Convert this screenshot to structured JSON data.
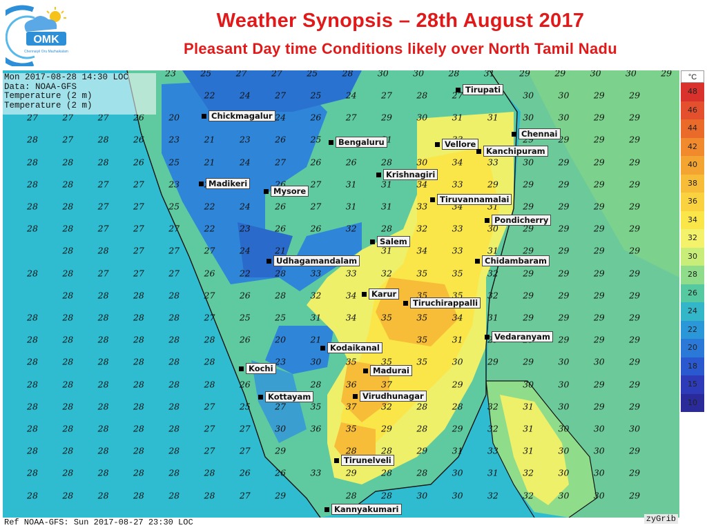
{
  "header": {
    "logo_text": "OMK",
    "logo_subtext": "Chennaiyil Oru Mazhaikalam",
    "title": "Weather Synopsis – 28th August 2017",
    "subtitle": "Pleasant Day time Conditions likely over North Tamil Nadu"
  },
  "info": {
    "line1": "Mon 2017-08-28 14:30 LOC",
    "line2": "Data: NOAA-GFS",
    "line3": "Temperature (2 m)",
    "line4": "Temperature (2 m)"
  },
  "footer": {
    "ref": "Ref NOAA-GFS: Sun 2017-08-27 23:30 LOC",
    "brand": "zyGrib"
  },
  "legend": {
    "unit": "°C",
    "levels": [
      "48",
      "46",
      "44",
      "42",
      "40",
      "38",
      "36",
      "34",
      "32",
      "30",
      "28",
      "26",
      "24",
      "22",
      "20",
      "18",
      "15",
      "10"
    ],
    "colors": [
      "#d9312b",
      "#e4502d",
      "#ea6a2a",
      "#f08a2c",
      "#f4a431",
      "#f7bd38",
      "#fad240",
      "#fbe64a",
      "#f4f26a",
      "#c8ed79",
      "#8fdc8a",
      "#56c9a0",
      "#33b6c8",
      "#2a98d8",
      "#2a79d8",
      "#2a58cf",
      "#2d3bb8",
      "#2a2a9a"
    ]
  },
  "colors": {
    "sea": "#2fbcd0",
    "land_cool": "#2f86d9",
    "land_warm": "#fbe64a",
    "land_hot": "#f7bd38"
  },
  "grid": {
    "rows": [
      [
        "22",
        "24",
        "27",
        "25",
        "24",
        "27",
        "28",
        "27",
        "",
        "30",
        "30",
        "29",
        "29"
      ],
      [
        "27",
        "27",
        "27",
        "26",
        "20",
        "",
        "25",
        "24",
        "26",
        "27",
        "29",
        "30",
        "31",
        "31",
        "30",
        "30",
        "29",
        "29"
      ],
      [
        "28",
        "27",
        "28",
        "26",
        "23",
        "21",
        "23",
        "26",
        "25",
        "",
        "31",
        "",
        "33",
        "",
        "29",
        "29",
        "29",
        "29"
      ],
      [
        "28",
        "28",
        "28",
        "26",
        "25",
        "21",
        "24",
        "27",
        "26",
        "26",
        "28",
        "30",
        "34",
        "33",
        "30",
        "29",
        "29",
        "29"
      ],
      [
        "28",
        "28",
        "27",
        "27",
        "23",
        "22",
        "",
        "26",
        "27",
        "31",
        "31",
        "34",
        "33",
        "29",
        "29",
        "29",
        "29",
        "29"
      ],
      [
        "28",
        "28",
        "27",
        "27",
        "25",
        "22",
        "24",
        "26",
        "27",
        "31",
        "31",
        "33",
        "34",
        "31",
        "29",
        "29",
        "29",
        "29"
      ],
      [
        "28",
        "28",
        "27",
        "27",
        "27",
        "22",
        "23",
        "26",
        "26",
        "32",
        "28",
        "32",
        "33",
        "30",
        "29",
        "29",
        "29",
        "29"
      ],
      [
        "28",
        "28",
        "27",
        "27",
        "27",
        "24",
        "21",
        "",
        "",
        "31",
        "34",
        "33",
        "31",
        "29",
        "29",
        "29",
        "29"
      ],
      [
        "28",
        "28",
        "27",
        "27",
        "27",
        "26",
        "22",
        "28",
        "33",
        "33",
        "32",
        "35",
        "35",
        "32",
        "29",
        "29",
        "29",
        "29"
      ],
      [
        "28",
        "28",
        "28",
        "28",
        "27",
        "26",
        "28",
        "32",
        "34",
        "32",
        "35",
        "35",
        "32",
        "29",
        "29",
        "29",
        "29"
      ],
      [
        "28",
        "28",
        "28",
        "28",
        "28",
        "27",
        "25",
        "25",
        "31",
        "34",
        "35",
        "35",
        "34",
        "31",
        "29",
        "29",
        "29",
        "29"
      ],
      [
        "28",
        "28",
        "28",
        "28",
        "28",
        "28",
        "26",
        "20",
        "21",
        "",
        "",
        "35",
        "31",
        "29",
        "29",
        "29",
        "29",
        "29"
      ],
      [
        "28",
        "28",
        "28",
        "28",
        "28",
        "28",
        "",
        "23",
        "30",
        "35",
        "35",
        "35",
        "30",
        "29",
        "29",
        "30",
        "30",
        "29"
      ],
      [
        "28",
        "28",
        "28",
        "28",
        "28",
        "28",
        "26",
        "",
        "28",
        "36",
        "37",
        "",
        "29",
        "",
        "30",
        "30",
        "29",
        "29"
      ],
      [
        "28",
        "28",
        "28",
        "28",
        "28",
        "27",
        "25",
        "27",
        "35",
        "37",
        "32",
        "28",
        "28",
        "32",
        "31",
        "30",
        "29",
        "29"
      ],
      [
        "28",
        "28",
        "28",
        "28",
        "28",
        "27",
        "27",
        "30",
        "36",
        "35",
        "29",
        "28",
        "29",
        "32",
        "31",
        "30",
        "30",
        "30"
      ],
      [
        "28",
        "28",
        "28",
        "28",
        "28",
        "27",
        "27",
        "29",
        "",
        "28",
        "28",
        "29",
        "31",
        "33",
        "31",
        "30",
        "30",
        "29"
      ],
      [
        "28",
        "28",
        "28",
        "28",
        "28",
        "28",
        "26",
        "26",
        "33",
        "29",
        "28",
        "28",
        "30",
        "31",
        "32",
        "30",
        "30",
        "29"
      ],
      [
        "28",
        "28",
        "28",
        "28",
        "28",
        "28",
        "27",
        "29",
        "",
        "28",
        "28",
        "30",
        "30",
        "32",
        "32",
        "30",
        "30",
        "29"
      ]
    ],
    "top_row": [
      "23",
      "25",
      "27",
      "27",
      "25",
      "28",
      "30",
      "30",
      "28",
      "31",
      "29",
      "29",
      "30",
      "30",
      "29"
    ]
  },
  "cities": [
    {
      "name": "Tirupati"
    },
    {
      "name": "Chickmagalur"
    },
    {
      "name": "Chennai"
    },
    {
      "name": "Bengaluru"
    },
    {
      "name": "Vellore"
    },
    {
      "name": "Kanchipuram"
    },
    {
      "name": "Krishnagiri"
    },
    {
      "name": "Madikeri"
    },
    {
      "name": "Mysore"
    },
    {
      "name": "Tiruvannamalai"
    },
    {
      "name": "Pondicherry"
    },
    {
      "name": "Salem"
    },
    {
      "name": "Udhagamandalam"
    },
    {
      "name": "Chidambaram"
    },
    {
      "name": "Karur"
    },
    {
      "name": "Tiruchirappalli"
    },
    {
      "name": "Vedaranyam"
    },
    {
      "name": "Kodaikanal"
    },
    {
      "name": "Kochi"
    },
    {
      "name": "Madurai"
    },
    {
      "name": "Kottayam"
    },
    {
      "name": "Virudhunagar"
    },
    {
      "name": "Tirunelveli"
    },
    {
      "name": "Kannyakumari"
    }
  ]
}
